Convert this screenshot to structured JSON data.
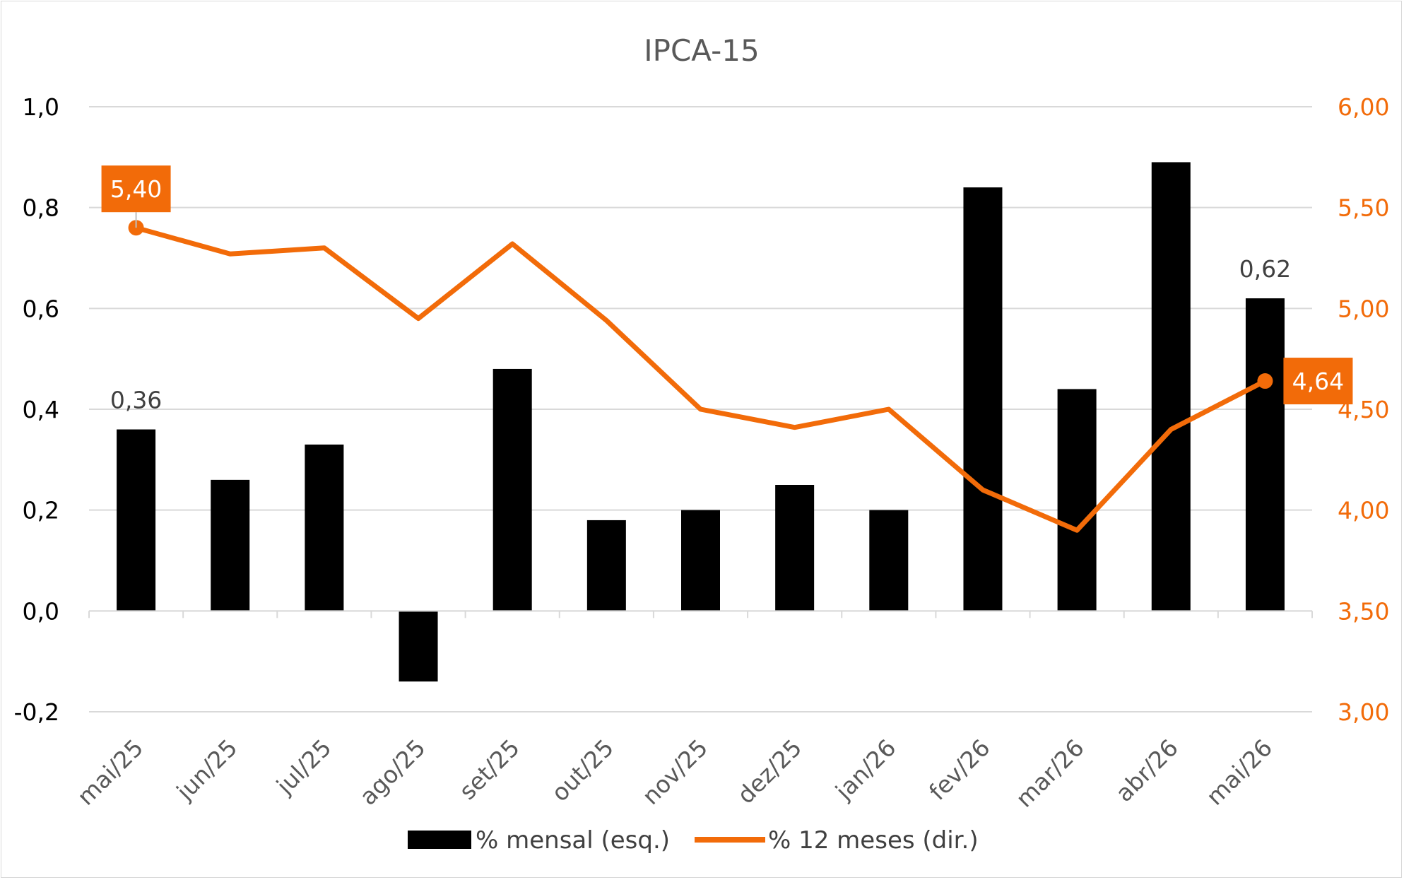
{
  "colors": {
    "bar": "#000000",
    "line": "#f26b09",
    "grid": "#d9d9d9",
    "right_axis_text": "#f26b09",
    "callout_bg": "#f26b09",
    "callout_text": "#ffffff"
  },
  "chart_data": {
    "type": "bar",
    "title": "IPCA-15",
    "categories": [
      "mai/25",
      "jun/25",
      "jul/25",
      "ago/25",
      "set/25",
      "out/25",
      "nov/25",
      "dez/25",
      "jan/26",
      "fev/26",
      "mar/26",
      "abr/26",
      "mai/26"
    ],
    "series": [
      {
        "name": "% mensal (esq.)",
        "type": "bar",
        "axis": "left",
        "values": [
          0.36,
          0.26,
          0.33,
          -0.14,
          0.48,
          0.18,
          0.2,
          0.25,
          0.2,
          0.84,
          0.44,
          0.89,
          0.62
        ]
      },
      {
        "name": "% 12 meses (dir.)",
        "type": "line",
        "axis": "right",
        "values": [
          5.4,
          5.27,
          5.3,
          4.95,
          5.32,
          4.94,
          4.5,
          4.41,
          4.5,
          4.1,
          3.9,
          4.4,
          4.64
        ]
      }
    ],
    "left_axis": {
      "ylim": [
        -0.2,
        1.0
      ],
      "ticks": [
        "1,0",
        "0,8",
        "0,6",
        "0,4",
        "0,2",
        "0,0",
        "-0,2"
      ]
    },
    "right_axis": {
      "ylim": [
        3.0,
        6.0
      ],
      "ticks": [
        "6,00",
        "5,50",
        "5,00",
        "4,50",
        "4,00",
        "3,50",
        "3,00"
      ]
    },
    "data_labels": [
      {
        "series": 0,
        "index": 0,
        "text": "0,36"
      },
      {
        "series": 0,
        "index": 12,
        "text": "0,62"
      }
    ],
    "callouts": [
      {
        "series": 1,
        "index": 0,
        "text": "5,40"
      },
      {
        "series": 1,
        "index": 12,
        "text": "4,64"
      }
    ],
    "grid": true,
    "legend_position": "bottom"
  }
}
